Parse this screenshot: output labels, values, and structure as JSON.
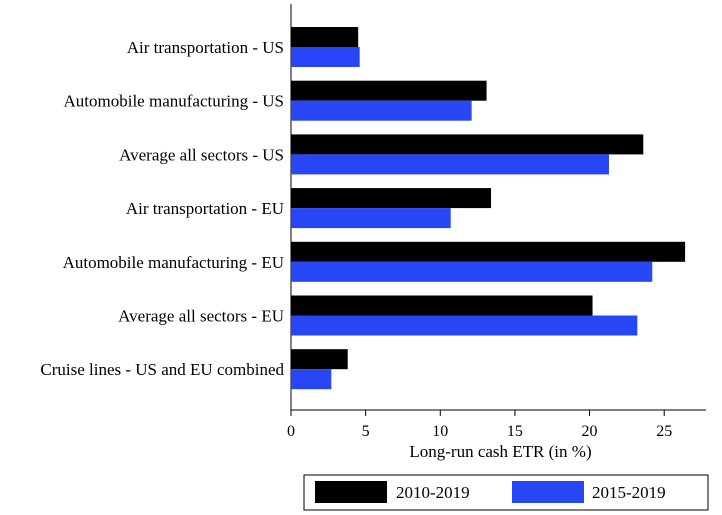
{
  "chart_data": {
    "type": "bar",
    "orientation": "horizontal",
    "categories": [
      "Air transportation - US",
      "Automobile manufacturing - US",
      "Average all sectors - US",
      "Air transportation - EU",
      "Automobile manufacturing - EU",
      "Average all sectors - EU",
      "Cruise lines - US and EU combined"
    ],
    "series": [
      {
        "name": "2010-2019",
        "color": "#000000",
        "values": [
          4.5,
          13.1,
          23.6,
          13.4,
          26.4,
          20.2,
          3.8
        ]
      },
      {
        "name": "2015-2019",
        "color": "#2746f5",
        "values": [
          4.6,
          12.1,
          21.3,
          10.7,
          24.2,
          23.2,
          2.7
        ]
      }
    ],
    "xlabel": "Long-run cash ETR (in %)",
    "xlim": [
      0,
      27.8
    ],
    "xticks": [
      0,
      5,
      10,
      15,
      20,
      25
    ],
    "grid": false,
    "legend_position": "bottom"
  }
}
